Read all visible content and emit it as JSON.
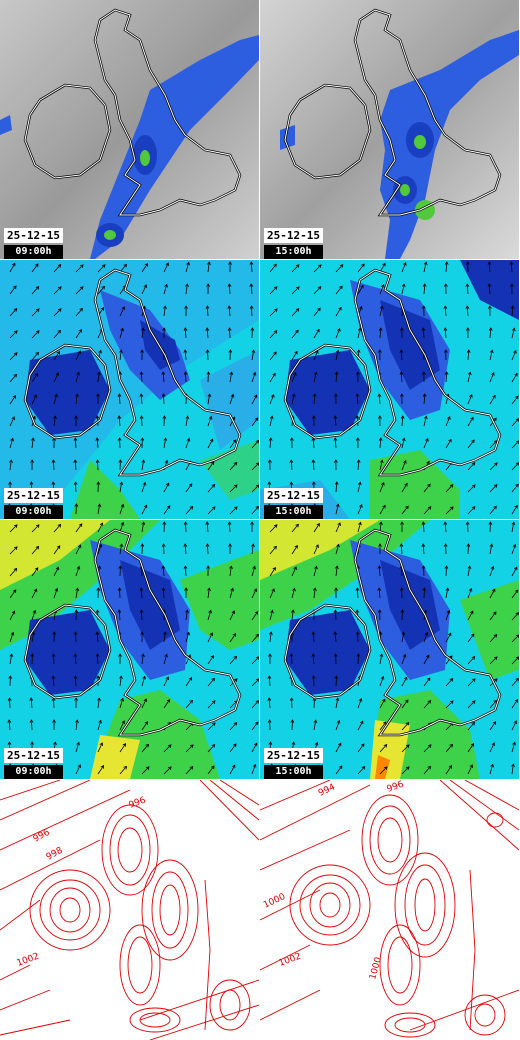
{
  "panels": [
    {
      "row": "precip",
      "col": "left",
      "date": "25-12-15",
      "time": "09:00h"
    },
    {
      "row": "precip",
      "col": "right",
      "date": "25-12-15",
      "time": "15:00h"
    },
    {
      "row": "wind",
      "col": "left",
      "date": "25-12-15",
      "time": "09:00h"
    },
    {
      "row": "wind",
      "col": "right",
      "date": "25-12-15",
      "time": "15:00h"
    },
    {
      "row": "gust",
      "col": "left",
      "date": "25-12-15",
      "time": "09:00h"
    },
    {
      "row": "gust",
      "col": "right",
      "date": "25-12-15",
      "time": "15:00h"
    },
    {
      "row": "pressure",
      "col": "left"
    },
    {
      "row": "pressure",
      "col": "right"
    }
  ],
  "isobar_labels": {
    "left": [
      "996",
      "998",
      "996",
      "1002"
    ],
    "right": [
      "994",
      "996",
      "1000",
      "1002",
      "1000"
    ]
  },
  "colors": {
    "cloud_gray": "#a8a8a8",
    "rain_blue": "#1a4fd6",
    "rain_green": "#52c83c",
    "wind_cyan": "#14d2e6",
    "wind_blue": "#2d5ee0",
    "wind_dark": "#1432b4",
    "wind_green": "#3ed24a",
    "wind_yellow": "#e6e632",
    "isobar_red": "#e00000"
  }
}
